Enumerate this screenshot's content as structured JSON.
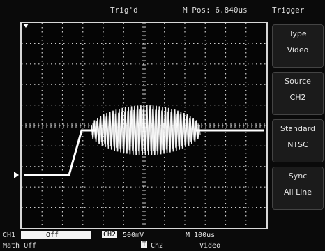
{
  "header": {
    "trigger_status": "Trig'd",
    "memory_position": "M Pos: 6.840us",
    "menu_title": "Trigger"
  },
  "menu": {
    "items": [
      {
        "label": "Type",
        "value": "Video"
      },
      {
        "label": "Source",
        "value": "CH2"
      },
      {
        "label": "Standard",
        "value": "NTSC"
      },
      {
        "label": "Sync",
        "value": "All Line"
      }
    ]
  },
  "status_bar": {
    "ch1_label": "CH1",
    "ch1_state": "Off",
    "ch2_badge": "CH2",
    "ch2_scale": "500mV",
    "time_scale": "M 100us",
    "math_state": "Math Off",
    "trigger_source_badge": "T",
    "trigger_source": "Ch2",
    "trigger_type": "Video"
  },
  "colors": {
    "trace": "#ffffff",
    "grid": "#cfcfcf",
    "background": "#050505"
  },
  "icons": [
    "channel-ground-marker-icon",
    "trigger-position-marker-icon"
  ]
}
